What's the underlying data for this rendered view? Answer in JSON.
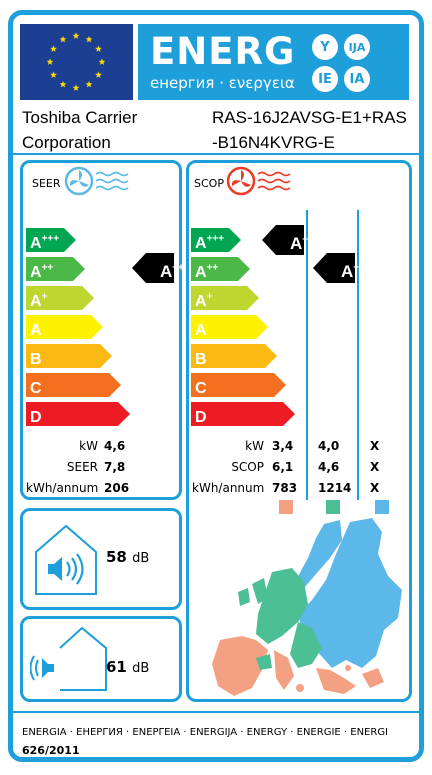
{
  "header": {
    "energy_word": "ENERG",
    "energy_sub": "енергия · ενεργεια",
    "language_marks": [
      "Y",
      "IJA",
      "IE",
      "IA"
    ]
  },
  "supplier": {
    "line1": "Toshiba Carrier",
    "line2": "Corporation"
  },
  "model": {
    "line1": "RAS-16J2AVSG-E1+RAS",
    "line2": "-B16N4KVRG-E"
  },
  "cooling": {
    "title": "SEER",
    "scale": [
      {
        "base": "A",
        "sup": "+++",
        "color": "#00a651"
      },
      {
        "base": "A",
        "sup": "++",
        "color": "#4cb848"
      },
      {
        "base": "A",
        "sup": "+",
        "color": "#bed630"
      },
      {
        "base": "A",
        "sup": "",
        "color": "#fff200"
      },
      {
        "base": "B",
        "sup": "",
        "color": "#fdb913"
      },
      {
        "base": "C",
        "sup": "",
        "color": "#f37021"
      },
      {
        "base": "D",
        "sup": "",
        "color": "#ed1c24"
      }
    ],
    "rating": {
      "base": "A",
      "sup": "++"
    },
    "rows": [
      {
        "label": "kW",
        "value": "4,6"
      },
      {
        "label": "SEER",
        "value": "7,8"
      },
      {
        "label": "kWh/annum",
        "value": "206"
      }
    ]
  },
  "heating": {
    "title": "SCOP",
    "scale": [
      {
        "base": "A",
        "sup": "+++",
        "color": "#00a651"
      },
      {
        "base": "A",
        "sup": "++",
        "color": "#4cb848"
      },
      {
        "base": "A",
        "sup": "+",
        "color": "#bed630"
      },
      {
        "base": "A",
        "sup": "",
        "color": "#fff200"
      },
      {
        "base": "B",
        "sup": "",
        "color": "#fdb913"
      },
      {
        "base": "C",
        "sup": "",
        "color": "#f37021"
      },
      {
        "base": "D",
        "sup": "",
        "color": "#ed1c24"
      }
    ],
    "rating_average": {
      "base": "A",
      "sup": "+++"
    },
    "rating_warmer": {
      "base": "A",
      "sup": "++"
    },
    "rows": [
      {
        "label": "kW",
        "v1": "3,4",
        "v2": "4,0",
        "v3": "X"
      },
      {
        "label": "SCOP",
        "v1": "6,1",
        "v2": "4,6",
        "v3": "X"
      },
      {
        "label": "kWh/annum",
        "v1": "783",
        "v2": "1214",
        "v3": "X"
      }
    ],
    "zone_colors": [
      "#f4a183",
      "#4dbf94",
      "#5cb8e8"
    ]
  },
  "noise": {
    "indoor_value": "58",
    "indoor_unit": "dB",
    "outdoor_value": "61",
    "outdoor_unit": "dB"
  },
  "footer": {
    "languages": "ENERGIA · ЕНЕРГИЯ · ΕΝΕΡΓΕΙΑ · ENERGIJA · ENERGY · ENERGIE · ENERGI",
    "regulation": "626/2011"
  },
  "colors": {
    "accent": "#1e9fd9",
    "eu_blue": "#1d3f91",
    "eu_star": "#ffdd00"
  }
}
